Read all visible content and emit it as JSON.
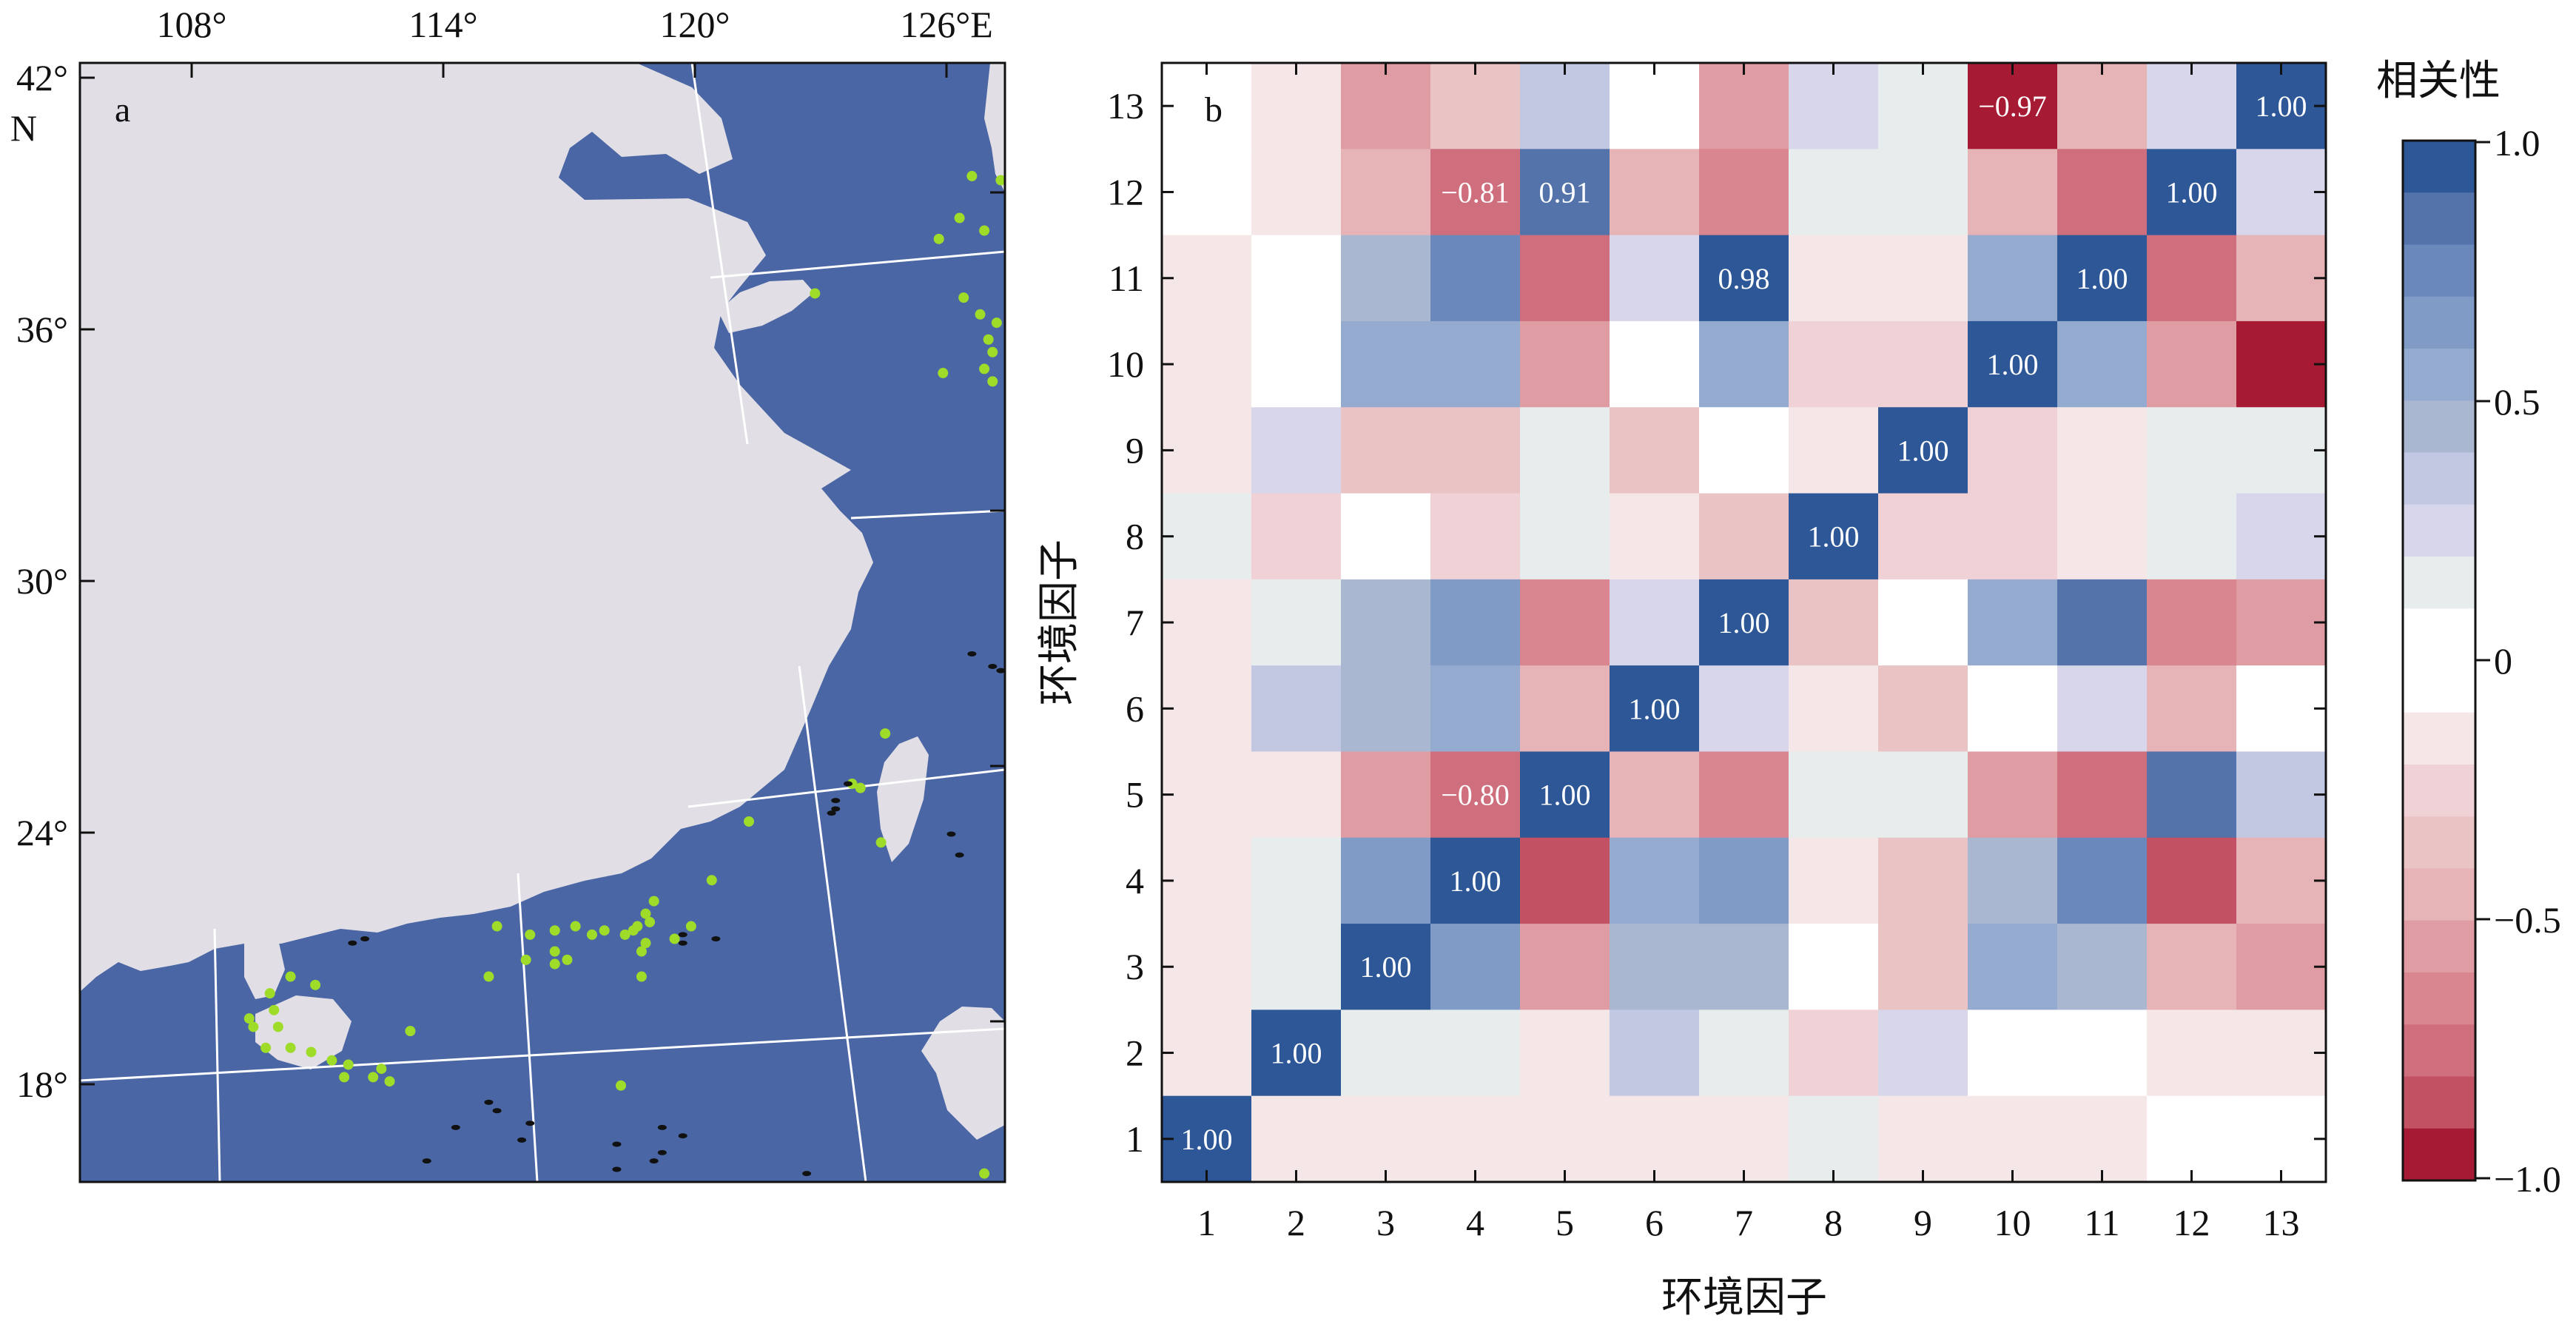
{
  "colors": {
    "sea": "#4a66a4",
    "land": "#e1dfe5",
    "grid_line": "#ffffff",
    "coast_land_green": "#9fdc2a",
    "island_black": "#111111",
    "positive_max": "#2d5796",
    "negative_max": "#a61a33"
  },
  "map_panel": {
    "panel_label": "a",
    "x_ticks": [
      "108°",
      "114°",
      "120°",
      "126°E"
    ],
    "y_ticks": [
      "42°",
      "36°",
      "30°",
      "24°",
      "18°"
    ],
    "y_unit": "N",
    "ranges": {
      "lon": [
        103.5,
        125.9
      ],
      "lat": [
        15.5,
        42.2
      ]
    },
    "points_green": [
      [
        125.1,
        39.5
      ],
      [
        125.8,
        39.4
      ],
      [
        124.8,
        38.5
      ],
      [
        125.4,
        38.2
      ],
      [
        126.0,
        38.2
      ],
      [
        124.3,
        38.0
      ],
      [
        121.3,
        36.7
      ],
      [
        124.9,
        36.6
      ],
      [
        125.3,
        36.2
      ],
      [
        125.7,
        36.0
      ],
      [
        125.5,
        35.6
      ],
      [
        125.6,
        35.3
      ],
      [
        125.4,
        34.9
      ],
      [
        124.4,
        34.8
      ],
      [
        125.6,
        34.6
      ],
      [
        123.0,
        26.2
      ],
      [
        122.2,
        25.0
      ],
      [
        122.4,
        24.9
      ],
      [
        119.7,
        24.1
      ],
      [
        122.9,
        23.6
      ],
      [
        118.8,
        22.7
      ],
      [
        117.4,
        22.2
      ],
      [
        117.2,
        21.9
      ],
      [
        117.3,
        21.7
      ],
      [
        117.0,
        21.6
      ],
      [
        116.9,
        21.5
      ],
      [
        116.7,
        21.4
      ],
      [
        116.2,
        21.5
      ],
      [
        115.9,
        21.4
      ],
      [
        115.5,
        21.6
      ],
      [
        115.0,
        21.5
      ],
      [
        114.4,
        21.4
      ],
      [
        113.6,
        21.6
      ],
      [
        118.3,
        21.6
      ],
      [
        117.9,
        21.3
      ],
      [
        117.2,
        21.2
      ],
      [
        117.1,
        21.0
      ],
      [
        115.0,
        21.0
      ],
      [
        115.3,
        20.8
      ],
      [
        115.0,
        20.7
      ],
      [
        114.3,
        20.8
      ],
      [
        113.4,
        20.4
      ],
      [
        117.1,
        20.4
      ],
      [
        108.6,
        20.4
      ],
      [
        109.2,
        20.2
      ],
      [
        108.1,
        20.0
      ],
      [
        108.2,
        19.6
      ],
      [
        107.6,
        19.4
      ],
      [
        107.7,
        19.2
      ],
      [
        108.3,
        19.2
      ],
      [
        111.5,
        19.1
      ],
      [
        108.0,
        18.7
      ],
      [
        108.6,
        18.7
      ],
      [
        109.1,
        18.6
      ],
      [
        109.6,
        18.4
      ],
      [
        110.0,
        18.3
      ],
      [
        109.9,
        18.0
      ],
      [
        110.8,
        18.2
      ],
      [
        110.6,
        18.0
      ],
      [
        111.0,
        17.9
      ],
      [
        116.6,
        17.8
      ],
      [
        125.4,
        15.7
      ]
    ],
    "points_black": [
      [
        125.1,
        28.1
      ],
      [
        125.6,
        27.8
      ],
      [
        125.8,
        27.7
      ],
      [
        122.1,
        25.0
      ],
      [
        121.8,
        24.6
      ],
      [
        121.8,
        24.4
      ],
      [
        121.7,
        24.3
      ],
      [
        124.6,
        23.8
      ],
      [
        124.8,
        23.3
      ],
      [
        110.4,
        21.3
      ],
      [
        110.1,
        21.2
      ],
      [
        118.1,
        21.4
      ],
      [
        118.9,
        21.3
      ],
      [
        118.1,
        21.2
      ],
      [
        113.4,
        17.4
      ],
      [
        113.6,
        17.2
      ],
      [
        114.4,
        16.9
      ],
      [
        112.6,
        16.8
      ],
      [
        117.6,
        16.8
      ],
      [
        118.1,
        16.6
      ],
      [
        114.2,
        16.5
      ],
      [
        116.5,
        16.4
      ],
      [
        117.6,
        16.2
      ],
      [
        117.4,
        16.0
      ],
      [
        111.9,
        16.0
      ],
      [
        116.5,
        15.8
      ],
      [
        121.1,
        15.7
      ]
    ]
  },
  "chart_data": {
    "type": "heatmap",
    "panel_label": "b",
    "xlabel": "环境因子",
    "ylabel": "环境因子",
    "x_categories": [
      "1",
      "2",
      "3",
      "4",
      "5",
      "6",
      "7",
      "8",
      "9",
      "10",
      "11",
      "12",
      "13"
    ],
    "y_categories": [
      "1",
      "2",
      "3",
      "4",
      "5",
      "6",
      "7",
      "8",
      "9",
      "10",
      "11",
      "12",
      "13"
    ],
    "colorbar": {
      "title": "相关性",
      "range": [
        -1.0,
        1.0
      ],
      "ticks": [
        "1.0",
        "0.5",
        "0",
        "−0.5",
        "−1.0"
      ],
      "levels": 20
    },
    "rows_top_to_bottom": [
      {
        "y": "13",
        "values": [
          0.0,
          -0.08,
          -0.6,
          -0.35,
          0.3,
          0.0,
          -0.55,
          0.2,
          0.1,
          -0.97,
          -0.45,
          0.2,
          1.0
        ]
      },
      {
        "y": "12",
        "values": [
          0.0,
          -0.08,
          -0.45,
          -0.81,
          0.91,
          -0.45,
          -0.65,
          0.1,
          0.1,
          -0.45,
          -0.75,
          1.0,
          0.2
        ]
      },
      {
        "y": "11",
        "values": [
          -0.08,
          0.0,
          0.45,
          0.8,
          -0.75,
          0.2,
          0.98,
          -0.15,
          -0.15,
          0.6,
          1.0,
          -0.75,
          -0.45
        ]
      },
      {
        "y": "10",
        "values": [
          -0.08,
          0.0,
          0.6,
          0.5,
          -0.6,
          0.0,
          0.6,
          -0.25,
          -0.25,
          1.0,
          0.6,
          -0.5,
          -0.95
        ]
      },
      {
        "y": "9",
        "values": [
          -0.08,
          0.25,
          -0.3,
          -0.3,
          0.1,
          -0.3,
          -0.05,
          -0.15,
          1.0,
          -0.25,
          -0.15,
          0.1,
          0.1
        ]
      },
      {
        "y": "8",
        "values": [
          0.1,
          -0.2,
          -0.05,
          -0.2,
          0.1,
          -0.15,
          -0.3,
          1.0,
          -0.2,
          -0.25,
          -0.15,
          0.1,
          0.2
        ]
      },
      {
        "y": "7",
        "values": [
          -0.08,
          0.1,
          0.45,
          0.65,
          -0.7,
          0.2,
          1.0,
          -0.3,
          -0.05,
          0.6,
          0.9,
          -0.65,
          -0.55
        ]
      },
      {
        "y": "6",
        "values": [
          -0.08,
          0.35,
          0.45,
          0.55,
          -0.45,
          1.0,
          0.2,
          -0.15,
          -0.3,
          0.0,
          0.2,
          -0.45,
          0.0
        ]
      },
      {
        "y": "5",
        "values": [
          -0.08,
          -0.08,
          -0.6,
          -0.8,
          1.0,
          -0.45,
          -0.65,
          0.1,
          0.1,
          -0.6,
          -0.75,
          0.9,
          0.3
        ]
      },
      {
        "y": "4",
        "values": [
          -0.08,
          0.1,
          0.7,
          1.0,
          -0.85,
          0.55,
          0.65,
          -0.15,
          -0.3,
          0.45,
          0.75,
          -0.85,
          -0.4
        ]
      },
      {
        "y": "3",
        "values": [
          -0.08,
          0.1,
          1.0,
          0.7,
          -0.6,
          0.45,
          0.45,
          -0.05,
          -0.3,
          0.55,
          0.45,
          -0.45,
          -0.6
        ]
      },
      {
        "y": "2",
        "values": [
          -0.08,
          1.0,
          0.1,
          0.1,
          -0.08,
          0.35,
          0.1,
          -0.2,
          0.25,
          0.0,
          0.0,
          -0.08,
          -0.08
        ]
      },
      {
        "y": "1",
        "values": [
          1.0,
          -0.08,
          -0.08,
          -0.08,
          -0.08,
          -0.08,
          -0.08,
          0.1,
          -0.08,
          -0.08,
          -0.08,
          0.0,
          0.0
        ]
      }
    ],
    "value_labels": [
      {
        "x": "1",
        "y": "1",
        "text": "1.00"
      },
      {
        "x": "2",
        "y": "2",
        "text": "1.00"
      },
      {
        "x": "3",
        "y": "3",
        "text": "1.00"
      },
      {
        "x": "4",
        "y": "4",
        "text": "1.00"
      },
      {
        "x": "5",
        "y": "5",
        "text": "1.00"
      },
      {
        "x": "4",
        "y": "5",
        "text": "−0.80"
      },
      {
        "x": "6",
        "y": "6",
        "text": "1.00"
      },
      {
        "x": "7",
        "y": "7",
        "text": "1.00"
      },
      {
        "x": "8",
        "y": "8",
        "text": "1.00"
      },
      {
        "x": "9",
        "y": "9",
        "text": "1.00"
      },
      {
        "x": "10",
        "y": "10",
        "text": "1.00"
      },
      {
        "x": "7",
        "y": "11",
        "text": "0.98"
      },
      {
        "x": "11",
        "y": "11",
        "text": "1.00"
      },
      {
        "x": "4",
        "y": "12",
        "text": "−0.81"
      },
      {
        "x": "5",
        "y": "12",
        "text": "0.91"
      },
      {
        "x": "12",
        "y": "12",
        "text": "1.00"
      },
      {
        "x": "10",
        "y": "13",
        "text": "−0.97"
      },
      {
        "x": "13",
        "y": "13",
        "text": "1.00"
      }
    ]
  }
}
